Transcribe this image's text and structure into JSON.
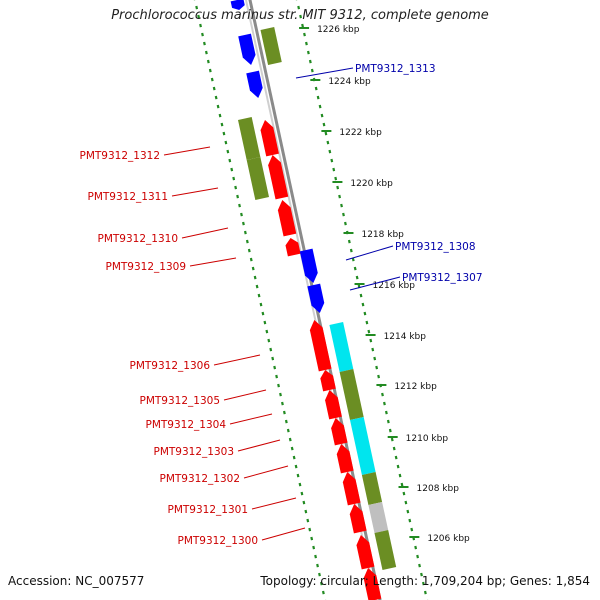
{
  "title": "Prochlorococcus marinus str. MIT 9312, complete genome",
  "footer": {
    "accession": "Accession: NC_007577",
    "summary": "Topology: circular; Length: 1,709,204 bp; Genes: 1,854"
  },
  "colors": {
    "forward_cds": "#ff0000",
    "reverse_cds": "#0000ff",
    "cog_green": "#6b8e23",
    "cog_cyan": "#00e5ee",
    "cog_grey": "#bfbfbf",
    "backbone": "#8a8a8a",
    "tick_green": "#228b22"
  },
  "scale": {
    "unit": "kbp",
    "ticks": [
      "1226 kbp",
      "1224 kbp",
      "1222 kbp",
      "1220 kbp",
      "1218 kbp",
      "1216 kbp",
      "1214 kbp",
      "1212 kbp",
      "1210 kbp",
      "1208 kbp",
      "1206 kbp"
    ]
  },
  "gene_labels": [
    {
      "text": "PMT9312_1313",
      "strand": "reverse"
    },
    {
      "text": "PMT9312_1312",
      "strand": "forward"
    },
    {
      "text": "PMT9312_1311",
      "strand": "forward"
    },
    {
      "text": "PMT9312_1310",
      "strand": "forward"
    },
    {
      "text": "PMT9312_1309",
      "strand": "forward"
    },
    {
      "text": "PMT9312_1308",
      "strand": "reverse"
    },
    {
      "text": "PMT9312_1307",
      "strand": "reverse"
    },
    {
      "text": "PMT9312_1306",
      "strand": "forward"
    },
    {
      "text": "PMT9312_1305",
      "strand": "forward"
    },
    {
      "text": "PMT9312_1304",
      "strand": "forward"
    },
    {
      "text": "PMT9312_1303",
      "strand": "forward"
    },
    {
      "text": "PMT9312_1302",
      "strand": "forward"
    },
    {
      "text": "PMT9312_1301",
      "strand": "forward"
    },
    {
      "text": "PMT9312_1300",
      "strand": "forward"
    }
  ]
}
